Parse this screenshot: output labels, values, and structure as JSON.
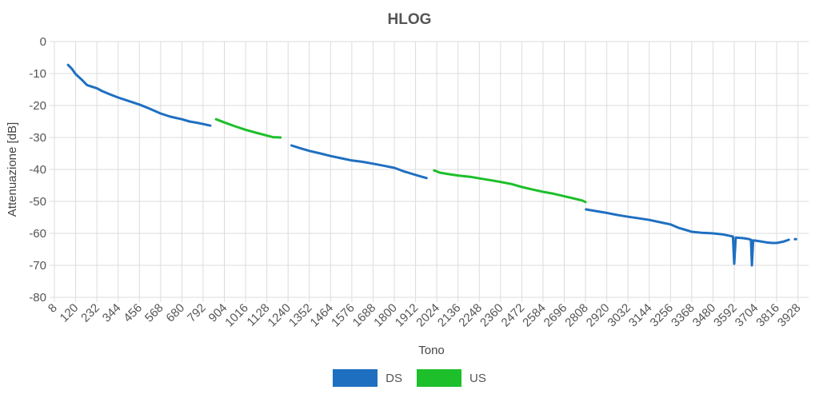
{
  "chart_data": {
    "type": "line",
    "title": "HLOG",
    "xlabel": "Tono",
    "ylabel": "Attenuazione [dB]",
    "xlim": [
      8,
      3984
    ],
    "ylim": [
      -80,
      0
    ],
    "x_ticks": [
      8,
      120,
      232,
      344,
      456,
      568,
      680,
      792,
      904,
      1016,
      1128,
      1240,
      1352,
      1464,
      1576,
      1688,
      1800,
      1912,
      2024,
      2136,
      2248,
      2360,
      2472,
      2584,
      2696,
      2808,
      2920,
      3032,
      3144,
      3256,
      3368,
      3480,
      3592,
      3704,
      3816,
      3928
    ],
    "y_ticks": [
      0,
      -10,
      -20,
      -30,
      -40,
      -50,
      -60,
      -70,
      -80
    ],
    "grid": true,
    "legend_position": "bottom",
    "series": [
      {
        "name": "DS",
        "color": "#1f6fc1",
        "segments": [
          [
            [
              80,
              -7.3
            ],
            [
              100,
              -8.5
            ],
            [
              120,
              -10.2
            ],
            [
              150,
              -11.8
            ],
            [
              180,
              -13.6
            ],
            [
              210,
              -14.2
            ],
            [
              232,
              -14.6
            ],
            [
              260,
              -15.5
            ],
            [
              300,
              -16.5
            ],
            [
              344,
              -17.5
            ],
            [
              400,
              -18.6
            ],
            [
              456,
              -19.7
            ],
            [
              510,
              -21.0
            ],
            [
              568,
              -22.5
            ],
            [
              620,
              -23.5
            ],
            [
              680,
              -24.3
            ],
            [
              720,
              -25.0
            ],
            [
              760,
              -25.4
            ],
            [
              792,
              -25.8
            ],
            [
              830,
              -26.3
            ]
          ],
          [
            [
              1258,
              -32.5
            ],
            [
              1300,
              -33.3
            ],
            [
              1352,
              -34.2
            ],
            [
              1410,
              -35.0
            ],
            [
              1464,
              -35.8
            ],
            [
              1520,
              -36.5
            ],
            [
              1576,
              -37.2
            ],
            [
              1630,
              -37.6
            ],
            [
              1688,
              -38.2
            ],
            [
              1740,
              -38.8
            ],
            [
              1800,
              -39.5
            ],
            [
              1850,
              -40.6
            ],
            [
              1900,
              -41.5
            ],
            [
              1940,
              -42.2
            ],
            [
              1970,
              -42.7
            ]
          ],
          [
            [
              2810,
              -52.5
            ],
            [
              2860,
              -53.0
            ],
            [
              2920,
              -53.6
            ],
            [
              2980,
              -54.3
            ],
            [
              3032,
              -54.8
            ],
            [
              3090,
              -55.3
            ],
            [
              3144,
              -55.8
            ],
            [
              3200,
              -56.5
            ],
            [
              3256,
              -57.2
            ],
            [
              3300,
              -58.3
            ],
            [
              3340,
              -59.0
            ],
            [
              3368,
              -59.5
            ],
            [
              3420,
              -59.8
            ],
            [
              3480,
              -60.0
            ],
            [
              3530,
              -60.3
            ],
            [
              3570,
              -60.8
            ],
            [
              3585,
              -61.0
            ],
            [
              3592,
              -69.5
            ],
            [
              3600,
              -61.3
            ],
            [
              3640,
              -61.5
            ],
            [
              3670,
              -61.8
            ],
            [
              3680,
              -62.0
            ],
            [
              3685,
              -70.0
            ],
            [
              3692,
              -62.2
            ],
            [
              3720,
              -62.4
            ],
            [
              3760,
              -62.8
            ],
            [
              3790,
              -63.0
            ],
            [
              3816,
              -63.0
            ],
            [
              3850,
              -62.6
            ],
            [
              3880,
              -62.0
            ]
          ],
          [
            [
              3912,
              -61.8
            ],
            [
              3918,
              -61.8
            ]
          ]
        ]
      },
      {
        "name": "US",
        "color": "#1dbf2a",
        "segments": [
          [
            [
              860,
              -24.3
            ],
            [
              904,
              -25.3
            ],
            [
              960,
              -26.5
            ],
            [
              1016,
              -27.6
            ],
            [
              1070,
              -28.5
            ],
            [
              1128,
              -29.4
            ],
            [
              1160,
              -29.9
            ],
            [
              1200,
              -30.0
            ]
          ],
          [
            [
              2010,
              -40.3
            ],
            [
              2040,
              -41.0
            ],
            [
              2080,
              -41.4
            ],
            [
              2136,
              -41.9
            ],
            [
              2200,
              -42.3
            ],
            [
              2248,
              -42.8
            ],
            [
              2300,
              -43.3
            ],
            [
              2360,
              -43.9
            ],
            [
              2420,
              -44.6
            ],
            [
              2472,
              -45.5
            ],
            [
              2530,
              -46.3
            ],
            [
              2584,
              -47.0
            ],
            [
              2640,
              -47.6
            ],
            [
              2696,
              -48.4
            ],
            [
              2740,
              -49.0
            ],
            [
              2790,
              -49.7
            ],
            [
              2808,
              -50.2
            ]
          ]
        ]
      }
    ]
  }
}
